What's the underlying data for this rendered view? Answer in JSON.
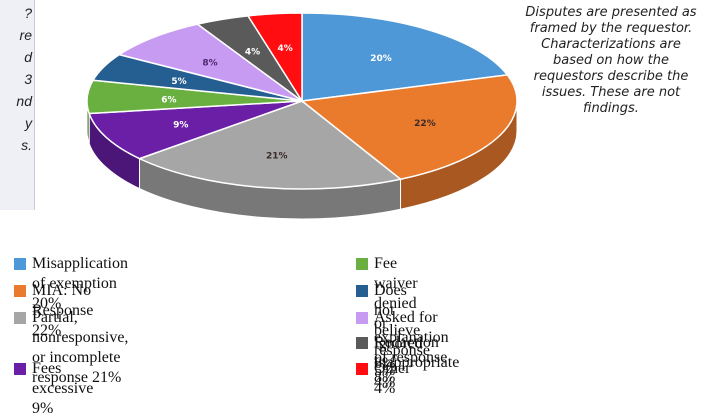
{
  "left_note": {
    "lines": [
      "?",
      "re",
      "d",
      "3",
      "nd",
      "y",
      "s."
    ]
  },
  "side_note": "Disputes are presented as framed by the requestor. Characterizations are based on how the requestors describe the issues. These are not findings.",
  "chart_data": {
    "type": "pie",
    "title": "",
    "categories": [
      "Misapplication of exemption",
      "MIA: No Response",
      "Partial, nonresponsive, or incomplete response",
      "Fees excessive",
      "Fee waiver denied or ignored",
      "Does not believe response",
      "Asked for explanation of response",
      "Redaction inappropriate",
      "Other"
    ],
    "values": [
      20,
      22,
      21,
      9,
      6,
      5,
      8,
      4,
      4
    ],
    "data_labels": [
      "20%",
      "22%",
      "21%",
      "9%",
      "6%",
      "5%",
      "8%",
      "4%",
      "4%"
    ],
    "colors": [
      "#4f98d7",
      "#ea7a2c",
      "#a6a6a6",
      "#6a1fa6",
      "#6ab040",
      "#255e91",
      "#c89bf2",
      "#5a5a5a",
      "#ff0d10"
    ],
    "legend": {
      "placement": "bottom",
      "items": [
        "Misapplication of exemption 20%",
        "MIA: No Response 22%",
        "Partial, nonresponsive, or incomplete\nresponse 21%",
        "Fees excessive 9%",
        "Fee waiver denied or ignored 6%",
        "Does not believe response 5%",
        "Asked for explanation of response 8%",
        "Redaction inappropriate 4%",
        "Other 4%"
      ]
    }
  }
}
